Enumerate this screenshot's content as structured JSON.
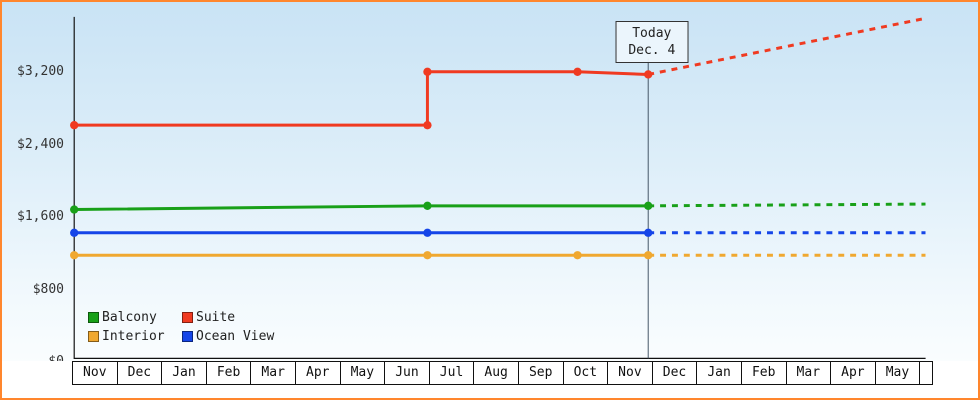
{
  "colors": {
    "border": "#ff862d",
    "bg_top": "#c9e3f5",
    "bg_bottom": "#ffffff",
    "axis": "#111111",
    "today_line": "#445566"
  },
  "chart_data": {
    "type": "line",
    "title": "",
    "xlabel": "",
    "ylabel": "",
    "x_unit": "month",
    "ylim": [
      0,
      3800
    ],
    "y_ticks": [
      0,
      800,
      1600,
      2400,
      3200
    ],
    "y_tick_labels": [
      "$0",
      "$800",
      "$1,600",
      "$2,400",
      "$3,200"
    ],
    "x_months": [
      "Nov",
      "Dec",
      "Jan",
      "Feb",
      "Mar",
      "Apr",
      "May",
      "Jun",
      "Jul",
      "Aug",
      "Sep",
      "Oct",
      "Nov",
      "Dec",
      "Jan",
      "Feb",
      "Mar",
      "Apr",
      "May"
    ],
    "today": {
      "label_line1": "Today",
      "label_line2": "Dec. 4",
      "x_month": 13.0
    },
    "projection_style": "dashed",
    "series": [
      {
        "name": "Suite",
        "color": "#f03a21",
        "solid": [
          [
            0,
            2600
          ],
          [
            8,
            2600
          ],
          [
            8,
            3195
          ],
          [
            11.4,
            3195
          ],
          [
            13.0,
            3165
          ]
        ],
        "markers": [
          [
            0,
            2600
          ],
          [
            8,
            2600
          ],
          [
            8,
            3195
          ],
          [
            11.4,
            3195
          ],
          [
            13.0,
            3165
          ]
        ],
        "dashed": [
          [
            13.0,
            3165
          ],
          [
            19.28,
            3790
          ]
        ]
      },
      {
        "name": "Balcony",
        "color": "#18a018",
        "solid": [
          [
            0,
            1660
          ],
          [
            8,
            1700
          ],
          [
            13.0,
            1700
          ]
        ],
        "markers": [
          [
            0,
            1660
          ],
          [
            8,
            1700
          ],
          [
            13.0,
            1700
          ]
        ],
        "dashed": [
          [
            13.0,
            1700
          ],
          [
            19.28,
            1720
          ]
        ]
      },
      {
        "name": "Ocean View",
        "color": "#1545e8",
        "solid": [
          [
            0,
            1400
          ],
          [
            8,
            1400
          ],
          [
            13.0,
            1400
          ]
        ],
        "markers": [
          [
            0,
            1400
          ],
          [
            8,
            1400
          ],
          [
            13.0,
            1400
          ]
        ],
        "dashed": [
          [
            13.0,
            1400
          ],
          [
            19.28,
            1400
          ]
        ]
      },
      {
        "name": "Interior",
        "color": "#f0a830",
        "solid": [
          [
            0,
            1150
          ],
          [
            8,
            1150
          ],
          [
            11.4,
            1150
          ],
          [
            13.0,
            1150
          ]
        ],
        "markers": [
          [
            0,
            1150
          ],
          [
            8,
            1150
          ],
          [
            11.4,
            1150
          ],
          [
            13.0,
            1150
          ]
        ],
        "dashed": [
          [
            13.0,
            1150
          ],
          [
            19.28,
            1150
          ]
        ]
      }
    ],
    "legend": [
      {
        "label": "Balcony",
        "color": "#18a018"
      },
      {
        "label": "Suite",
        "color": "#f03a21"
      },
      {
        "label": "Interior",
        "color": "#f0a830"
      },
      {
        "label": "Ocean View",
        "color": "#1545e8"
      }
    ],
    "legend_position": "bottom-left",
    "grid": false
  }
}
